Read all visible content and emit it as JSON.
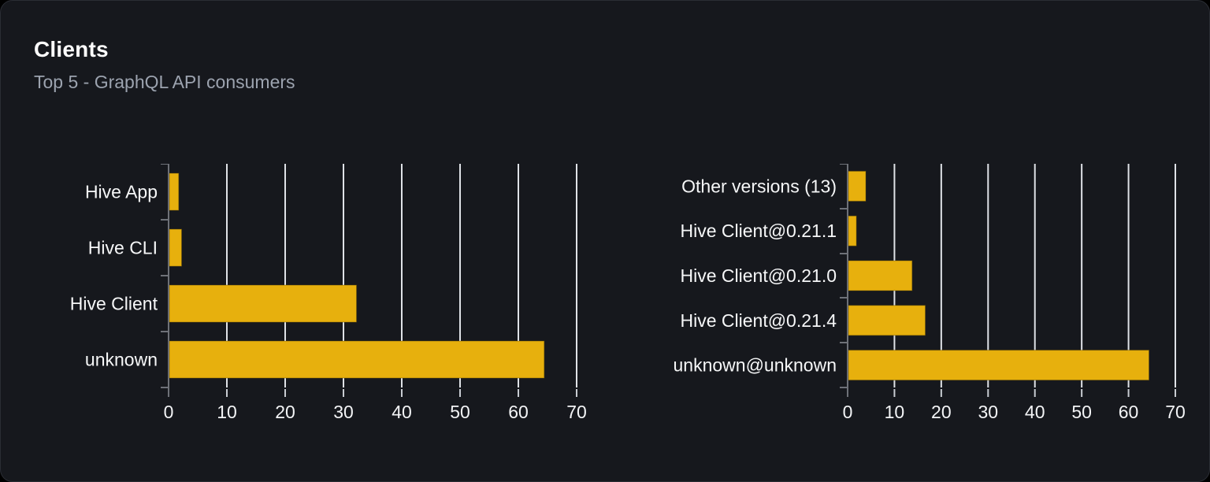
{
  "card": {
    "title": "Clients",
    "subtitle": "Top 5 - GraphQL API consumers"
  },
  "colors": {
    "page_bg": "#000000",
    "card_bg": "#16181d",
    "card_border": "#2a2d34",
    "title": "#ffffff",
    "subtitle": "#9ca3af",
    "bar": "#e7b00d",
    "bar_border": "#6b5205",
    "gridline": "#dfe2e7",
    "axis": "#6e7178",
    "x_tick": "#c8ccd2",
    "tick_label": "#f3f4f6",
    "category_label": "#f6f7f8"
  },
  "chart_data": [
    {
      "type": "bar",
      "orientation": "horizontal",
      "title": "",
      "categories_order": "top-to-bottom",
      "categories": [
        "Hive App",
        "Hive CLI",
        "Hive Client",
        "unknown"
      ],
      "values": [
        1.6,
        2.1,
        32.1,
        64.3
      ],
      "xlabel": "",
      "ylabel": "",
      "xlim": [
        0,
        70
      ],
      "xticks": [
        0,
        10,
        20,
        30,
        40,
        50,
        60,
        70
      ],
      "grid": true,
      "legend": false
    },
    {
      "type": "bar",
      "orientation": "horizontal",
      "title": "",
      "categories_order": "top-to-bottom",
      "categories": [
        "Other versions (13)",
        "Hive Client@0.21.1",
        "Hive Client@0.21.0",
        "Hive Client@0.21.4",
        "unknown@unknown"
      ],
      "values": [
        3.7,
        1.7,
        13.6,
        16.4,
        64.2
      ],
      "xlabel": "",
      "ylabel": "",
      "xlim": [
        0,
        70
      ],
      "xticks": [
        0,
        10,
        20,
        30,
        40,
        50,
        60,
        70
      ],
      "grid": true,
      "legend": false
    }
  ]
}
